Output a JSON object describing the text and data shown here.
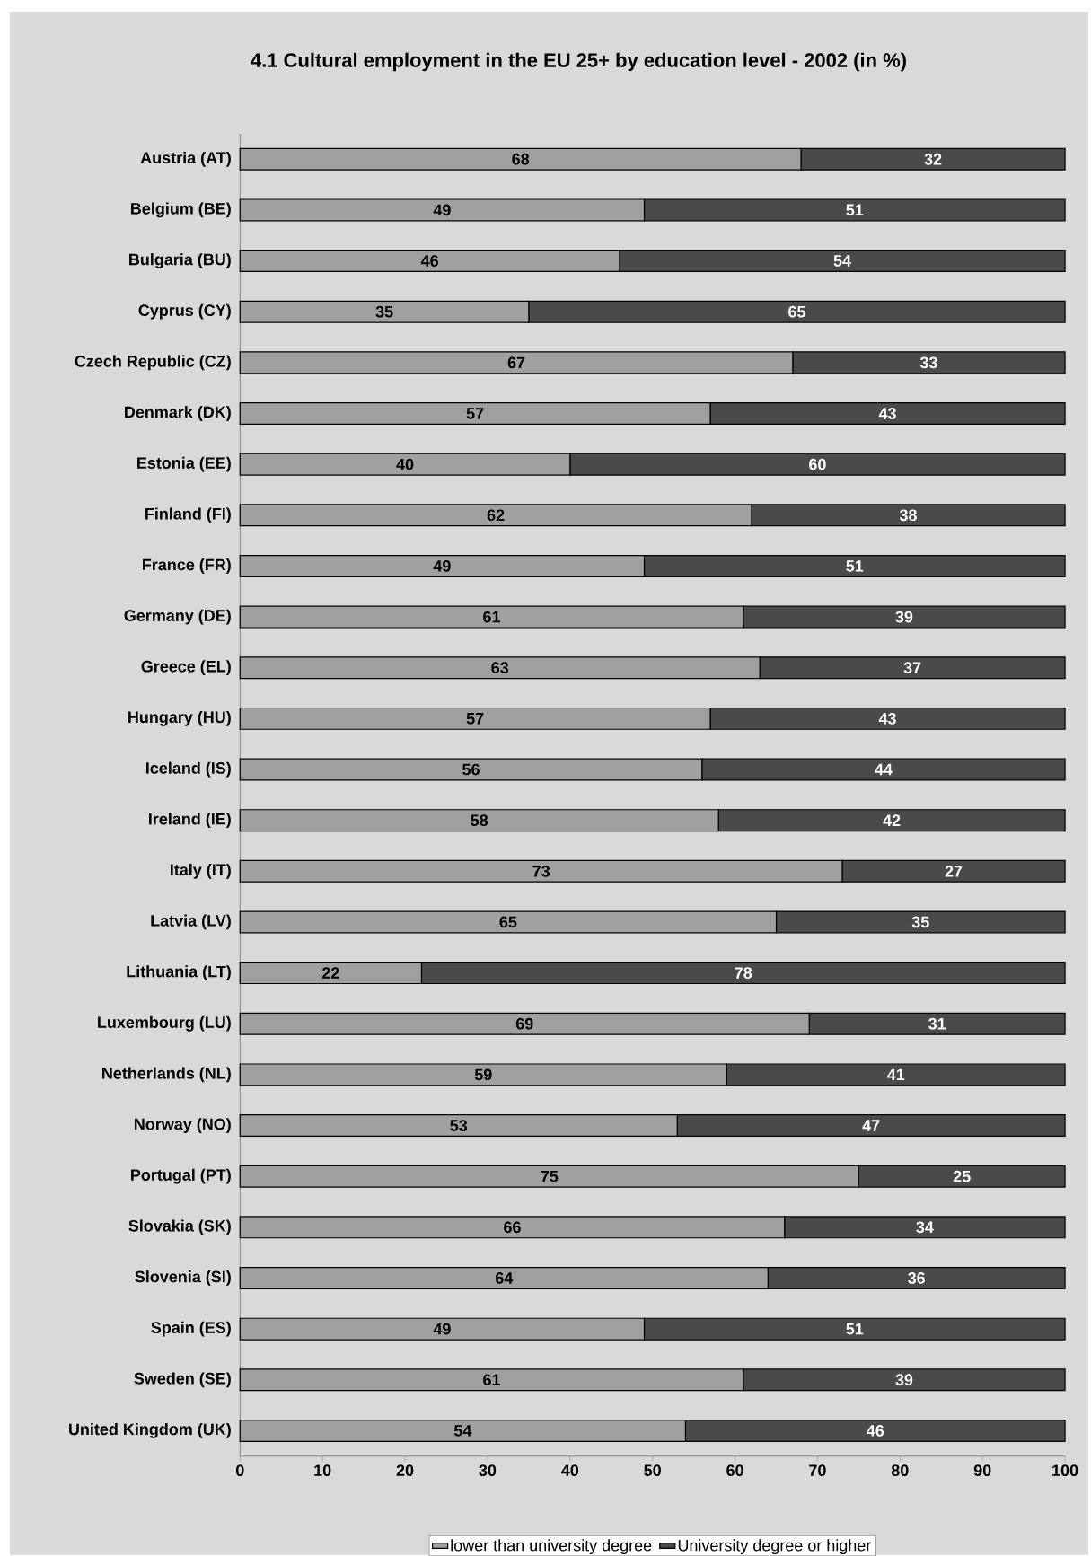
{
  "chart_data": {
    "type": "bar",
    "orientation": "horizontal",
    "stacked": true,
    "data_labels": true,
    "legend": "bottom",
    "grid": false,
    "title": "4.1     Cultural employment in the EU 25+ by education level - 2002 (in %)",
    "categories": [
      "Austria (AT)",
      "Belgium (BE)",
      "Bulgaria (BU)",
      "Cyprus (CY)",
      "Czech Republic (CZ)",
      "Denmark (DK)",
      "Estonia (EE)",
      "Finland (FI)",
      "France (FR)",
      "Germany (DE)",
      "Greece (EL)",
      "Hungary (HU)",
      "Iceland (IS)",
      "Ireland (IE)",
      "Italy (IT)",
      "Latvia (LV)",
      "Lithuania (LT)",
      "Luxembourg (LU)",
      "Netherlands (NL)",
      "Norway (NO)",
      "Portugal (PT)",
      "Slovakia (SK)",
      "Slovenia (SI)",
      "Spain (ES)",
      "Sweden (SE)",
      "United Kingdom (UK)"
    ],
    "series": [
      {
        "name": "lower than university degree",
        "color": "#a0a0a0",
        "values": [
          68,
          49,
          46,
          35,
          67,
          57,
          40,
          62,
          49,
          61,
          63,
          57,
          56,
          58,
          73,
          65,
          22,
          69,
          59,
          53,
          75,
          66,
          64,
          49,
          61,
          54
        ]
      },
      {
        "name": "University degree or higher",
        "color": "#4a4a4a",
        "values": [
          32,
          51,
          54,
          65,
          33,
          43,
          60,
          38,
          51,
          39,
          37,
          43,
          44,
          42,
          27,
          35,
          78,
          31,
          41,
          47,
          25,
          34,
          36,
          51,
          39,
          46
        ]
      }
    ],
    "xlim": [
      0,
      100
    ],
    "xticks": [
      0,
      10,
      20,
      30,
      40,
      50,
      60,
      70,
      80,
      90,
      100
    ]
  }
}
